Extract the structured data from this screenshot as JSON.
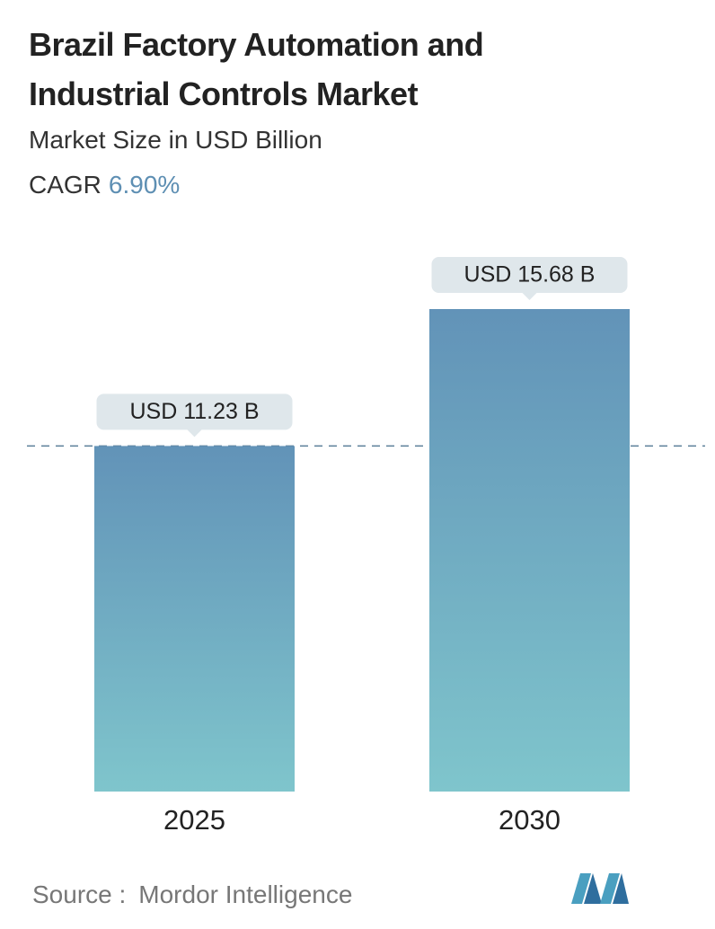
{
  "chart_data": {
    "type": "bar",
    "title": "Brazil Factory Automation and Industrial Controls Market",
    "subtitle": "Market Size in USD Billion",
    "cagr_label": "CAGR",
    "cagr_value": "6.90%",
    "categories": [
      "2025",
      "2030"
    ],
    "values": [
      11.23,
      15.68
    ],
    "value_labels": [
      "USD 11.23 B",
      "USD 15.68 B"
    ],
    "source_label": "Source :",
    "source": "Mordor Intelligence"
  }
}
